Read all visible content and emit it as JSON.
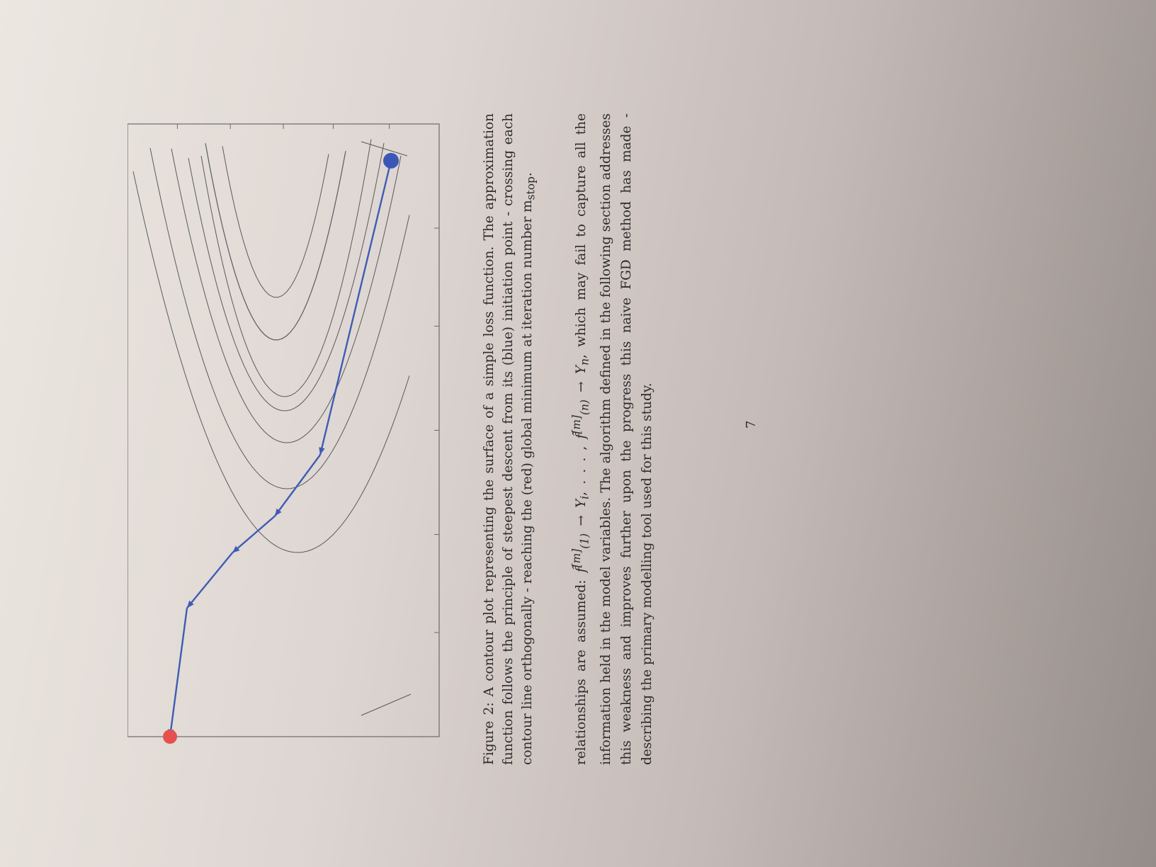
{
  "figure": {
    "label": "Figure 2:",
    "caption": "A contour plot representing the surface of a simple loss function. The approximation function follows the principle of steepest descent from its (blue) initiation point - crossing each contour line orthogonally - reaching the (red) global minimum at iteration number m",
    "caption_subscript": "stop",
    "caption_end": ".",
    "chart_data": {
      "type": "contour",
      "title": "",
      "xlabel": "",
      "ylabel": "",
      "grid": false,
      "legend": "none",
      "start_point_color": "#3a57b8",
      "end_point_color": "#e5504f",
      "path_color": "#3f5cb4",
      "contour_color": "#5a5a5a",
      "descent_path": [
        {
          "x": 0.1,
          "y": 0.0
        },
        {
          "x": 0.16,
          "y": 0.21
        },
        {
          "x": 0.32,
          "y": 0.3
        },
        {
          "x": 0.47,
          "y": 0.36
        },
        {
          "x": 0.63,
          "y": 0.46
        },
        {
          "x": 0.88,
          "y": 0.94
        }
      ],
      "start_point": {
        "x": 0.88,
        "y": 0.94
      },
      "end_point": {
        "x": 0.1,
        "y": 0.0
      }
    }
  },
  "paragraph": {
    "intro": "relationships are assumed:",
    "f_symbol": "f̂",
    "sup": "[m]",
    "sub1": "(1)",
    "arrow": "→",
    "y_i": "Y",
    "y_i_sub": "i",
    "comma_dots": ", . . . ,",
    "subn": "(n)",
    "y_n": "Y",
    "y_n_sub": "n",
    "rest": ", which may fail to capture all the information held in the model variables. The algorithm defined in the following section addresses this weakness and improves further upon the progress this naive FGD method has made - describing the primary modelling tool used for this study."
  },
  "page_number": "7"
}
